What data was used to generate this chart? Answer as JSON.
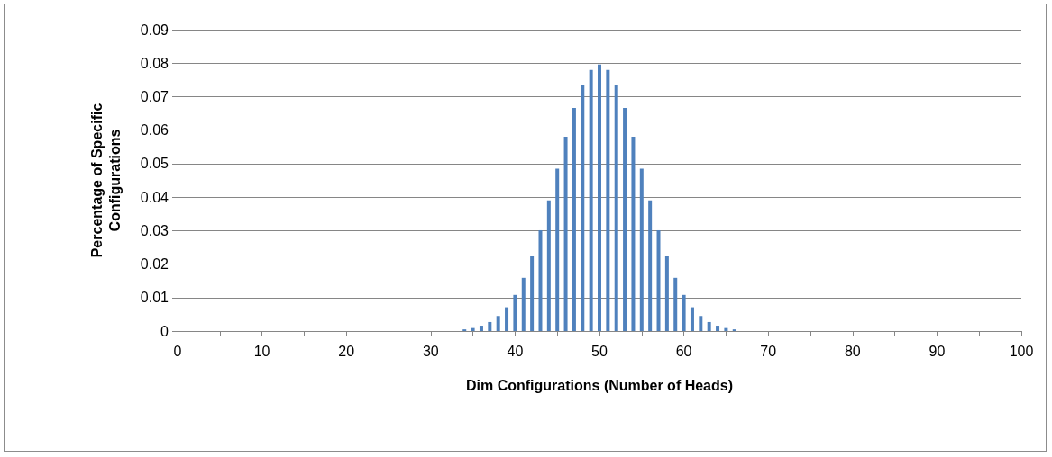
{
  "chart_data": {
    "type": "bar",
    "xlabel": "Dim Configurations (Number of Heads)",
    "ylabel": "Percentage of Specific Configurations",
    "x": [
      0,
      1,
      2,
      3,
      4,
      5,
      6,
      7,
      8,
      9,
      10,
      11,
      12,
      13,
      14,
      15,
      16,
      17,
      18,
      19,
      20,
      21,
      22,
      23,
      24,
      25,
      26,
      27,
      28,
      29,
      30,
      31,
      32,
      33,
      34,
      35,
      36,
      37,
      38,
      39,
      40,
      41,
      42,
      43,
      44,
      45,
      46,
      47,
      48,
      49,
      50,
      51,
      52,
      53,
      54,
      55,
      56,
      57,
      58,
      59,
      60,
      61,
      62,
      63,
      64,
      65,
      66,
      67,
      68,
      69,
      70,
      71,
      72,
      73,
      74,
      75,
      76,
      77,
      78,
      79,
      80,
      81,
      82,
      83,
      84,
      85,
      86,
      87,
      88,
      89,
      90,
      91,
      92,
      93,
      94,
      95,
      96,
      97,
      98,
      99,
      100
    ],
    "values": [
      0,
      0,
      0,
      0,
      0,
      0,
      0,
      0,
      0,
      0,
      0,
      0,
      0,
      0,
      0,
      0,
      0,
      0,
      0,
      0,
      0,
      0,
      0,
      0,
      0,
      0,
      0,
      0,
      0,
      0,
      0,
      0,
      0,
      0,
      0.0005,
      0.0009,
      0.0016,
      0.0027,
      0.0045,
      0.0071,
      0.0108,
      0.0159,
      0.0223,
      0.0301,
      0.039,
      0.0485,
      0.058,
      0.0666,
      0.0735,
      0.078,
      0.0796,
      0.078,
      0.0735,
      0.0666,
      0.058,
      0.0485,
      0.039,
      0.0301,
      0.0223,
      0.0159,
      0.0108,
      0.0071,
      0.0045,
      0.0027,
      0.0016,
      0.0009,
      0.0005,
      0,
      0,
      0,
      0,
      0,
      0,
      0,
      0,
      0,
      0,
      0,
      0,
      0,
      0,
      0,
      0,
      0,
      0,
      0,
      0,
      0,
      0,
      0,
      0,
      0,
      0,
      0,
      0,
      0,
      0,
      0,
      0,
      0,
      0
    ],
    "color": "#4f81bd",
    "xlim": [
      0,
      100
    ],
    "xticks": [
      0,
      {
        "value": 5,
        "label": null
      },
      10,
      {
        "value": 15,
        "label": null
      },
      20,
      {
        "value": 25,
        "label": null
      },
      30,
      {
        "value": 35,
        "label": null
      },
      40,
      {
        "value": 45,
        "label": null
      },
      50,
      {
        "value": 55,
        "label": null
      },
      60,
      {
        "value": 65,
        "label": null
      },
      70,
      {
        "value": 75,
        "label": null
      },
      80,
      {
        "value": 85,
        "label": null
      },
      90,
      {
        "value": 95,
        "label": null
      },
      100
    ],
    "ylim": [
      0,
      0.09
    ],
    "yticks": [
      0,
      0.01,
      0.02,
      0.03,
      0.04,
      0.05,
      0.06,
      0.07,
      0.08,
      0.09
    ],
    "grid": "y"
  }
}
